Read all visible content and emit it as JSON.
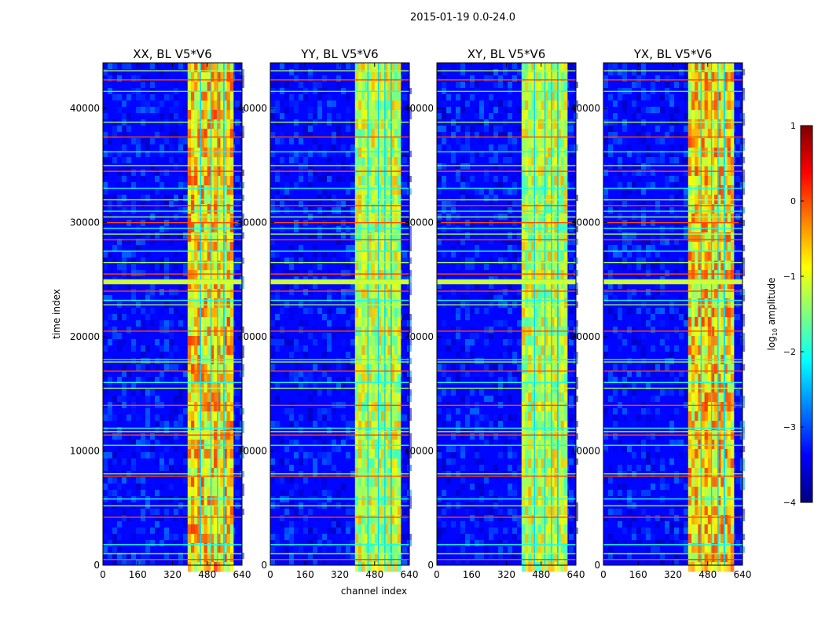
{
  "figure": {
    "suptitle": "2015-01-19 0.0-24.0",
    "xlabel": "channel index",
    "ylabel": "time index"
  },
  "chart_data": {
    "type": "heatmap",
    "title": "2015-01-19 0.0-24.0",
    "xlabel": "channel index",
    "ylabel": "time index",
    "xlim": [
      0,
      640
    ],
    "ylim": [
      0,
      44000
    ],
    "xticks": [
      0,
      160,
      320,
      480,
      640
    ],
    "yticks": [
      0,
      10000,
      20000,
      30000,
      40000
    ],
    "panels": [
      {
        "title": "XX, BL V5*V6",
        "polarization": "XX"
      },
      {
        "title": "YY, BL V5*V6",
        "polarization": "YY"
      },
      {
        "title": "XY, BL V5*V6",
        "polarization": "XY"
      },
      {
        "title": "YX, BL V5*V6",
        "polarization": "YX"
      }
    ],
    "colorbar": {
      "label": "log10 amplitude",
      "label_main": "log",
      "label_sub": "10",
      "label_tail": " amplitude",
      "range": [
        -4,
        1
      ],
      "ticks": [
        -4,
        -3,
        -2,
        -1,
        0,
        1
      ],
      "tick_labels": [
        "−4",
        "−3",
        "−2",
        "−1",
        "0",
        "1"
      ],
      "colormap": [
        "#00007f",
        "#0000ff",
        "#007fff",
        "#00ffff",
        "#7fff7f",
        "#ffff00",
        "#ff7f00",
        "#ff0000",
        "#7f0000"
      ]
    },
    "features": {
      "signal_band_channels": [
        390,
        600
      ],
      "band_gap_channels": [
        447,
        452,
        495,
        500,
        525,
        530,
        553,
        560
      ],
      "rfi_time_rows": [
        500,
        1000,
        1800,
        4200,
        5200,
        5800,
        7800,
        8000,
        10500,
        11400,
        11700,
        12000,
        14000,
        15500,
        16000,
        17000,
        17800,
        18000,
        20500,
        22800,
        23200,
        24000,
        24700,
        25000,
        25500,
        26500,
        27500,
        28500,
        29000,
        29500,
        30000,
        30500,
        31000,
        31500,
        32000,
        33000,
        34500,
        35000,
        36200,
        37500,
        38800,
        41500,
        42500,
        43300
      ]
    }
  }
}
